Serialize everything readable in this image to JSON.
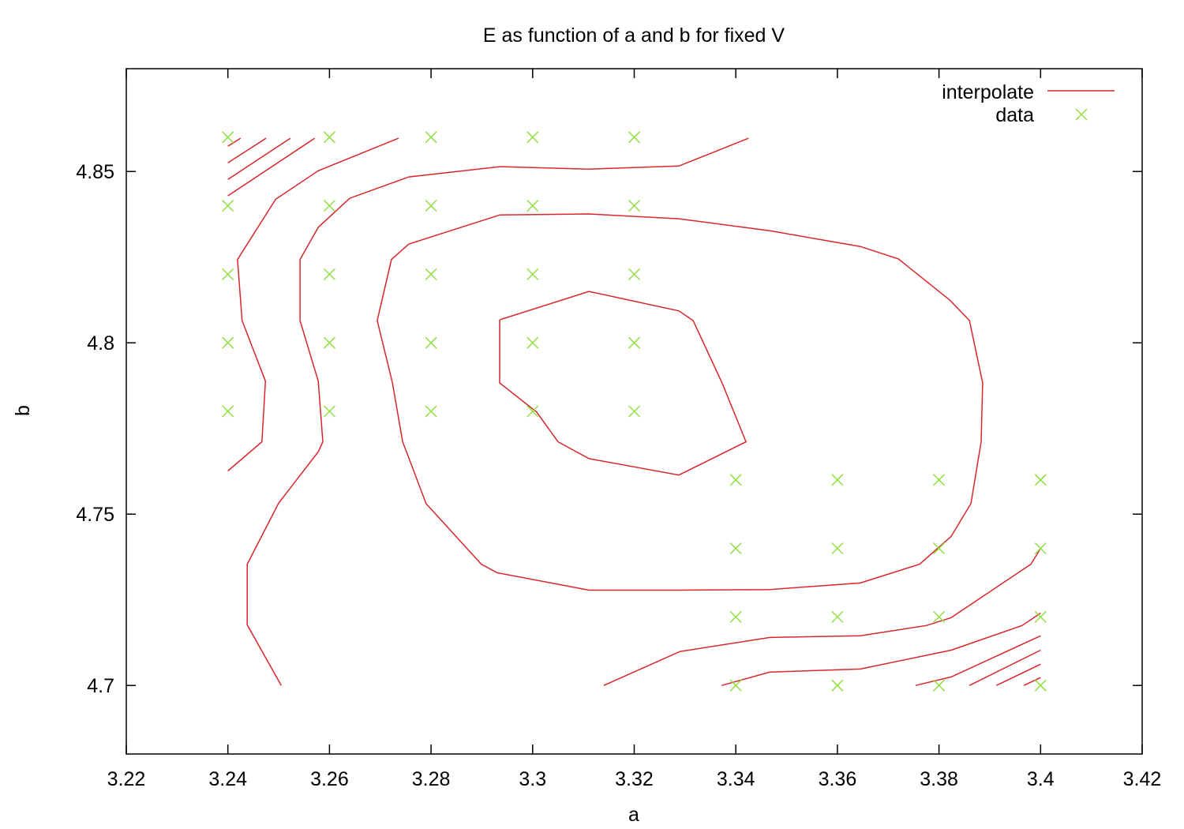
{
  "chart_data": {
    "type": "line",
    "title": "E as function of a and b for fixed V",
    "xlabel": "a",
    "ylabel": "b",
    "xlim": [
      3.22,
      3.42
    ],
    "ylim": [
      4.68,
      4.88
    ],
    "xticks": [
      "3.22",
      "3.24",
      "3.26",
      "3.28",
      "3.3",
      "3.32",
      "3.34",
      "3.36",
      "3.38",
      "3.4",
      "3.42"
    ],
    "yticks": [
      "4.7",
      "4.75",
      "4.8",
      "4.85"
    ],
    "grid": false,
    "legend_position": "top-right",
    "series": [
      {
        "name": "interpolate",
        "kind": "contour-lines",
        "color": "#d8262a",
        "paths": [
          [
            [
              3.24,
              4.8574
            ],
            [
              3.2425,
              4.8597
            ]
          ],
          [
            [
              3.24,
              4.8525
            ],
            [
              3.2475,
              4.8597
            ]
          ],
          [
            [
              3.24,
              4.8477
            ],
            [
              3.2523,
              4.8597
            ]
          ],
          [
            [
              3.24,
              4.8429
            ],
            [
              3.2571,
              4.8597
            ]
          ],
          [
            [
              3.2736,
              4.8597
            ],
            [
              3.2578,
              4.8502
            ],
            [
              3.2494,
              4.8419
            ],
            [
              3.2419,
              4.8243
            ],
            [
              3.2428,
              4.8065
            ],
            [
              3.2474,
              4.7888
            ],
            [
              3.2467,
              4.7711
            ],
            [
              3.24,
              4.7626
            ]
          ],
          [
            [
              3.3425,
              4.8597
            ],
            [
              3.3288,
              4.8516
            ],
            [
              3.3111,
              4.8507
            ],
            [
              3.2935,
              4.8514
            ],
            [
              3.2756,
              4.8484
            ],
            [
              3.264,
              4.8422
            ],
            [
              3.2578,
              4.8337
            ],
            [
              3.2542,
              4.8243
            ],
            [
              3.2542,
              4.8065
            ],
            [
              3.2578,
              4.7888
            ],
            [
              3.2587,
              4.7711
            ],
            [
              3.2578,
              4.7682
            ],
            [
              3.25,
              4.7532
            ],
            [
              3.2438,
              4.7354
            ],
            [
              3.2438,
              4.7177
            ],
            [
              3.2505,
              4.7
            ]
          ],
          [
            [
              3.2935,
              4.8373
            ],
            [
              3.3111,
              4.8376
            ],
            [
              3.3288,
              4.8362
            ],
            [
              3.3467,
              4.8327
            ],
            [
              3.3645,
              4.8281
            ],
            [
              3.372,
              4.8245
            ],
            [
              3.3821,
              4.8125
            ],
            [
              3.386,
              4.8065
            ],
            [
              3.3886,
              4.7883
            ],
            [
              3.3883,
              4.7711
            ],
            [
              3.3863,
              4.7531
            ],
            [
              3.3824,
              4.7435
            ],
            [
              3.3762,
              4.7354
            ],
            [
              3.3645,
              4.7299
            ],
            [
              3.3467,
              4.728
            ],
            [
              3.3288,
              4.7278
            ],
            [
              3.3111,
              4.7278
            ],
            [
              3.293,
              4.7329
            ],
            [
              3.2899,
              4.7354
            ],
            [
              3.279,
              4.7531
            ],
            [
              3.2756,
              4.7665
            ],
            [
              3.2744,
              4.7711
            ],
            [
              3.2724,
              4.7883
            ],
            [
              3.2694,
              4.8065
            ],
            [
              3.2722,
              4.8243
            ],
            [
              3.2756,
              4.8288
            ],
            [
              3.2935,
              4.8373
            ]
          ],
          [
            [
              3.2935,
              4.8067
            ],
            [
              3.3111,
              4.815
            ],
            [
              3.3288,
              4.8093
            ],
            [
              3.3316,
              4.8065
            ],
            [
              3.3373,
              4.7883
            ],
            [
              3.342,
              4.7711
            ],
            [
              3.3288,
              4.7614
            ],
            [
              3.3111,
              4.7662
            ],
            [
              3.305,
              4.7711
            ],
            [
              3.3008,
              4.7798
            ],
            [
              3.2935,
              4.7883
            ],
            [
              3.2935,
              4.8067
            ]
          ],
          [
            [
              3.314,
              4.7
            ],
            [
              3.329,
              4.7099
            ],
            [
              3.3467,
              4.714
            ],
            [
              3.3645,
              4.7145
            ],
            [
              3.3776,
              4.7175
            ],
            [
              3.3824,
              4.7198
            ],
            [
              3.3981,
              4.7354
            ],
            [
              3.4,
              4.74
            ]
          ],
          [
            [
              3.3372,
              4.7
            ],
            [
              3.3467,
              4.7039
            ],
            [
              3.3645,
              4.7048
            ],
            [
              3.3824,
              4.7103
            ],
            [
              3.3964,
              4.7175
            ],
            [
              3.4,
              4.7211
            ]
          ],
          [
            [
              3.3754,
              4.7
            ],
            [
              3.3824,
              4.7025
            ],
            [
              3.4,
              4.7145
            ]
          ],
          [
            [
              3.386,
              4.7
            ],
            [
              3.4,
              4.7103
            ]
          ],
          [
            [
              3.3913,
              4.7
            ],
            [
              3.4,
              4.7062
            ]
          ],
          [
            [
              3.3967,
              4.7
            ],
            [
              3.4,
              4.7023
            ]
          ]
        ]
      },
      {
        "name": "data",
        "kind": "scatter",
        "marker": "x",
        "color": "#90e040",
        "points": [
          [
            3.24,
            4.86
          ],
          [
            3.26,
            4.86
          ],
          [
            3.28,
            4.86
          ],
          [
            3.3,
            4.86
          ],
          [
            3.32,
            4.86
          ],
          [
            3.24,
            4.84
          ],
          [
            3.26,
            4.84
          ],
          [
            3.28,
            4.84
          ],
          [
            3.3,
            4.84
          ],
          [
            3.32,
            4.84
          ],
          [
            3.24,
            4.82
          ],
          [
            3.26,
            4.82
          ],
          [
            3.28,
            4.82
          ],
          [
            3.3,
            4.82
          ],
          [
            3.32,
            4.82
          ],
          [
            3.24,
            4.8
          ],
          [
            3.26,
            4.8
          ],
          [
            3.28,
            4.8
          ],
          [
            3.3,
            4.8
          ],
          [
            3.32,
            4.8
          ],
          [
            3.24,
            4.78
          ],
          [
            3.26,
            4.78
          ],
          [
            3.28,
            4.78
          ],
          [
            3.3,
            4.78
          ],
          [
            3.32,
            4.78
          ],
          [
            3.34,
            4.76
          ],
          [
            3.36,
            4.76
          ],
          [
            3.38,
            4.76
          ],
          [
            3.4,
            4.76
          ],
          [
            3.34,
            4.74
          ],
          [
            3.36,
            4.74
          ],
          [
            3.38,
            4.74
          ],
          [
            3.4,
            4.74
          ],
          [
            3.34,
            4.72
          ],
          [
            3.36,
            4.72
          ],
          [
            3.38,
            4.72
          ],
          [
            3.4,
            4.72
          ],
          [
            3.34,
            4.7
          ],
          [
            3.36,
            4.7
          ],
          [
            3.38,
            4.7
          ],
          [
            3.4,
            4.7
          ]
        ]
      }
    ]
  }
}
